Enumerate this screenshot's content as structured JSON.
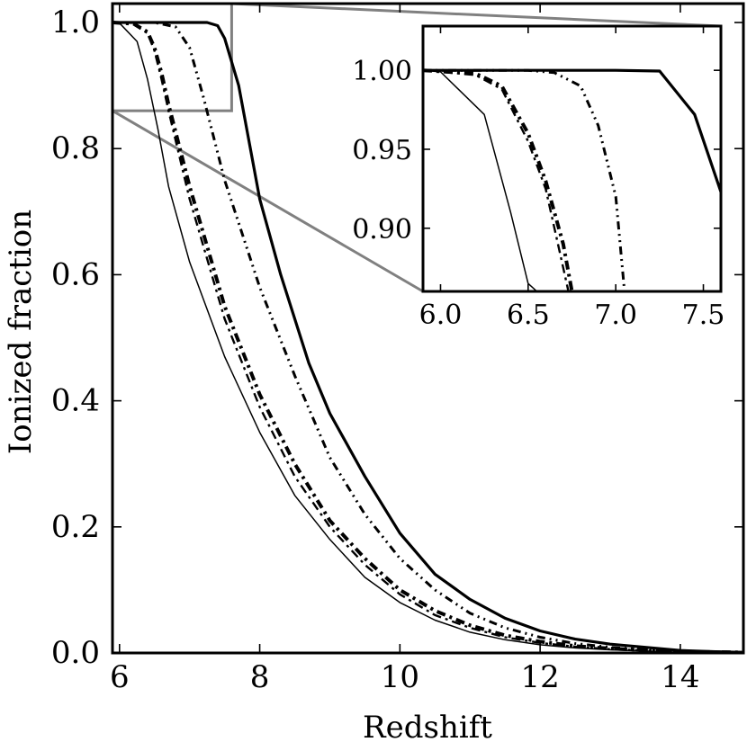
{
  "chart_data": [
    {
      "type": "line",
      "panel": "main",
      "title": "",
      "xlabel": "Redshift",
      "ylabel": "Ionized fraction",
      "xlim": [
        5.9,
        14.9
      ],
      "ylim": [
        0.0,
        1.03
      ],
      "xticks": [
        6,
        8,
        10,
        12,
        14
      ],
      "xtick_labels": [
        "6",
        "8",
        "10",
        "12",
        "14"
      ],
      "yticks": [
        0.0,
        0.2,
        0.4,
        0.6,
        0.8,
        1.0
      ],
      "ytick_labels": [
        "0.0",
        "0.2",
        "0.4",
        "0.6",
        "0.8",
        "1.0"
      ],
      "grid": false,
      "legend": "none",
      "series": [
        {
          "style": "thick-solid",
          "x": [
            5.9,
            6.0,
            6.5,
            7.0,
            7.25,
            7.4,
            7.5,
            7.7,
            8.0,
            8.3,
            8.7,
            9.0,
            9.5,
            10.0,
            10.5,
            11.0,
            11.5,
            12.0,
            12.5,
            13.0,
            13.5,
            14.0,
            14.5,
            14.9
          ],
          "y": [
            1.0,
            1.0,
            1.0,
            1.0,
            1.0,
            0.995,
            0.975,
            0.9,
            0.72,
            0.6,
            0.46,
            0.38,
            0.28,
            0.19,
            0.125,
            0.085,
            0.055,
            0.035,
            0.022,
            0.014,
            0.009,
            0.004,
            0.002,
            0.001
          ]
        },
        {
          "style": "dash-dot-dot",
          "x": [
            5.9,
            6.5,
            6.8,
            7.0,
            7.2,
            7.5,
            8.0,
            8.5,
            9.0,
            9.5,
            10.0,
            10.5,
            11.0,
            11.5,
            12.0,
            12.5,
            13.0,
            13.5,
            14.0,
            14.9
          ],
          "y": [
            1.0,
            1.0,
            0.993,
            0.96,
            0.88,
            0.75,
            0.58,
            0.44,
            0.31,
            0.22,
            0.15,
            0.1,
            0.063,
            0.04,
            0.025,
            0.015,
            0.009,
            0.005,
            0.003,
            0.001
          ]
        },
        {
          "style": "thick-dash-dot",
          "x": [
            5.9,
            6.2,
            6.4,
            6.5,
            6.6,
            6.7,
            7.0,
            7.5,
            8.0,
            8.5,
            9.0,
            9.5,
            10.0,
            10.5,
            11.0,
            11.5,
            12.0,
            12.5,
            13.0,
            14.0,
            14.9
          ],
          "y": [
            1.0,
            0.998,
            0.985,
            0.96,
            0.92,
            0.87,
            0.74,
            0.55,
            0.41,
            0.3,
            0.21,
            0.15,
            0.1,
            0.067,
            0.044,
            0.028,
            0.018,
            0.011,
            0.007,
            0.002,
            0.001
          ]
        },
        {
          "style": "dash-dot",
          "x": [
            5.9,
            6.2,
            6.4,
            6.5,
            6.6,
            6.7,
            7.0,
            7.5,
            8.0,
            8.5,
            9.0,
            9.5,
            10.0,
            10.5,
            11.0,
            11.5,
            12.0,
            12.5,
            13.0,
            14.0,
            14.9
          ],
          "y": [
            1.0,
            0.997,
            0.983,
            0.955,
            0.91,
            0.86,
            0.72,
            0.53,
            0.39,
            0.28,
            0.2,
            0.14,
            0.093,
            0.06,
            0.04,
            0.025,
            0.016,
            0.01,
            0.006,
            0.002,
            0.001
          ]
        },
        {
          "style": "thin-solid",
          "x": [
            5.9,
            6.0,
            6.25,
            6.4,
            6.55,
            6.7,
            7.0,
            7.5,
            8.0,
            8.5,
            9.0,
            9.5,
            10.0,
            10.5,
            11.0,
            11.5,
            12.0,
            12.5,
            13.0,
            14.0,
            14.9
          ],
          "y": [
            1.0,
            0.999,
            0.97,
            0.91,
            0.83,
            0.74,
            0.62,
            0.47,
            0.35,
            0.25,
            0.18,
            0.12,
            0.08,
            0.052,
            0.033,
            0.021,
            0.013,
            0.008,
            0.005,
            0.001,
            0.0
          ]
        }
      ]
    },
    {
      "type": "line",
      "panel": "inset-zoom",
      "title": "",
      "xlabel": "",
      "ylabel": "",
      "xlim": [
        5.9,
        7.6
      ],
      "ylim": [
        0.86,
        1.028
      ],
      "xticks": [
        6.0,
        6.5,
        7.0,
        7.5
      ],
      "xtick_labels": [
        "6.0",
        "6.5",
        "7.0",
        "7.5"
      ],
      "yticks": [
        0.9,
        0.95,
        1.0
      ],
      "ytick_labels": [
        "0.90",
        "0.95",
        "1.00"
      ],
      "grid": false,
      "legend": "none",
      "zoom_region": {
        "xlim": [
          5.9,
          7.6
        ],
        "ylim": [
          0.86,
          1.03
        ]
      },
      "series": [
        {
          "style": "thick-solid",
          "x": [
            5.9,
            6.0,
            6.5,
            7.0,
            7.25,
            7.45,
            7.6
          ],
          "y": [
            1.0,
            1.0,
            1.0,
            1.0,
            0.9995,
            0.972,
            0.923
          ]
        },
        {
          "style": "dash-dot-dot",
          "x": [
            5.9,
            6.5,
            6.65,
            6.8,
            6.9,
            7.0,
            7.05
          ],
          "y": [
            1.0,
            1.0,
            0.9985,
            0.99,
            0.965,
            0.92,
            0.86
          ]
        },
        {
          "style": "thick-dash-dot",
          "x": [
            5.9,
            6.2,
            6.35,
            6.5,
            6.6,
            6.7,
            6.75
          ],
          "y": [
            1.0,
            0.998,
            0.99,
            0.96,
            0.93,
            0.89,
            0.86
          ]
        },
        {
          "style": "dash-dot",
          "x": [
            5.9,
            6.2,
            6.35,
            6.5,
            6.6,
            6.68,
            6.73
          ],
          "y": [
            1.0,
            0.997,
            0.988,
            0.955,
            0.925,
            0.885,
            0.86
          ]
        },
        {
          "style": "thin-solid",
          "x": [
            5.9,
            6.0,
            6.25,
            6.4,
            6.5,
            6.55
          ],
          "y": [
            1.0,
            0.999,
            0.972,
            0.91,
            0.865,
            0.86
          ]
        }
      ]
    }
  ],
  "colors": {
    "axes": "#000000",
    "zoom_indicator": "#808080",
    "background": "#ffffff"
  }
}
